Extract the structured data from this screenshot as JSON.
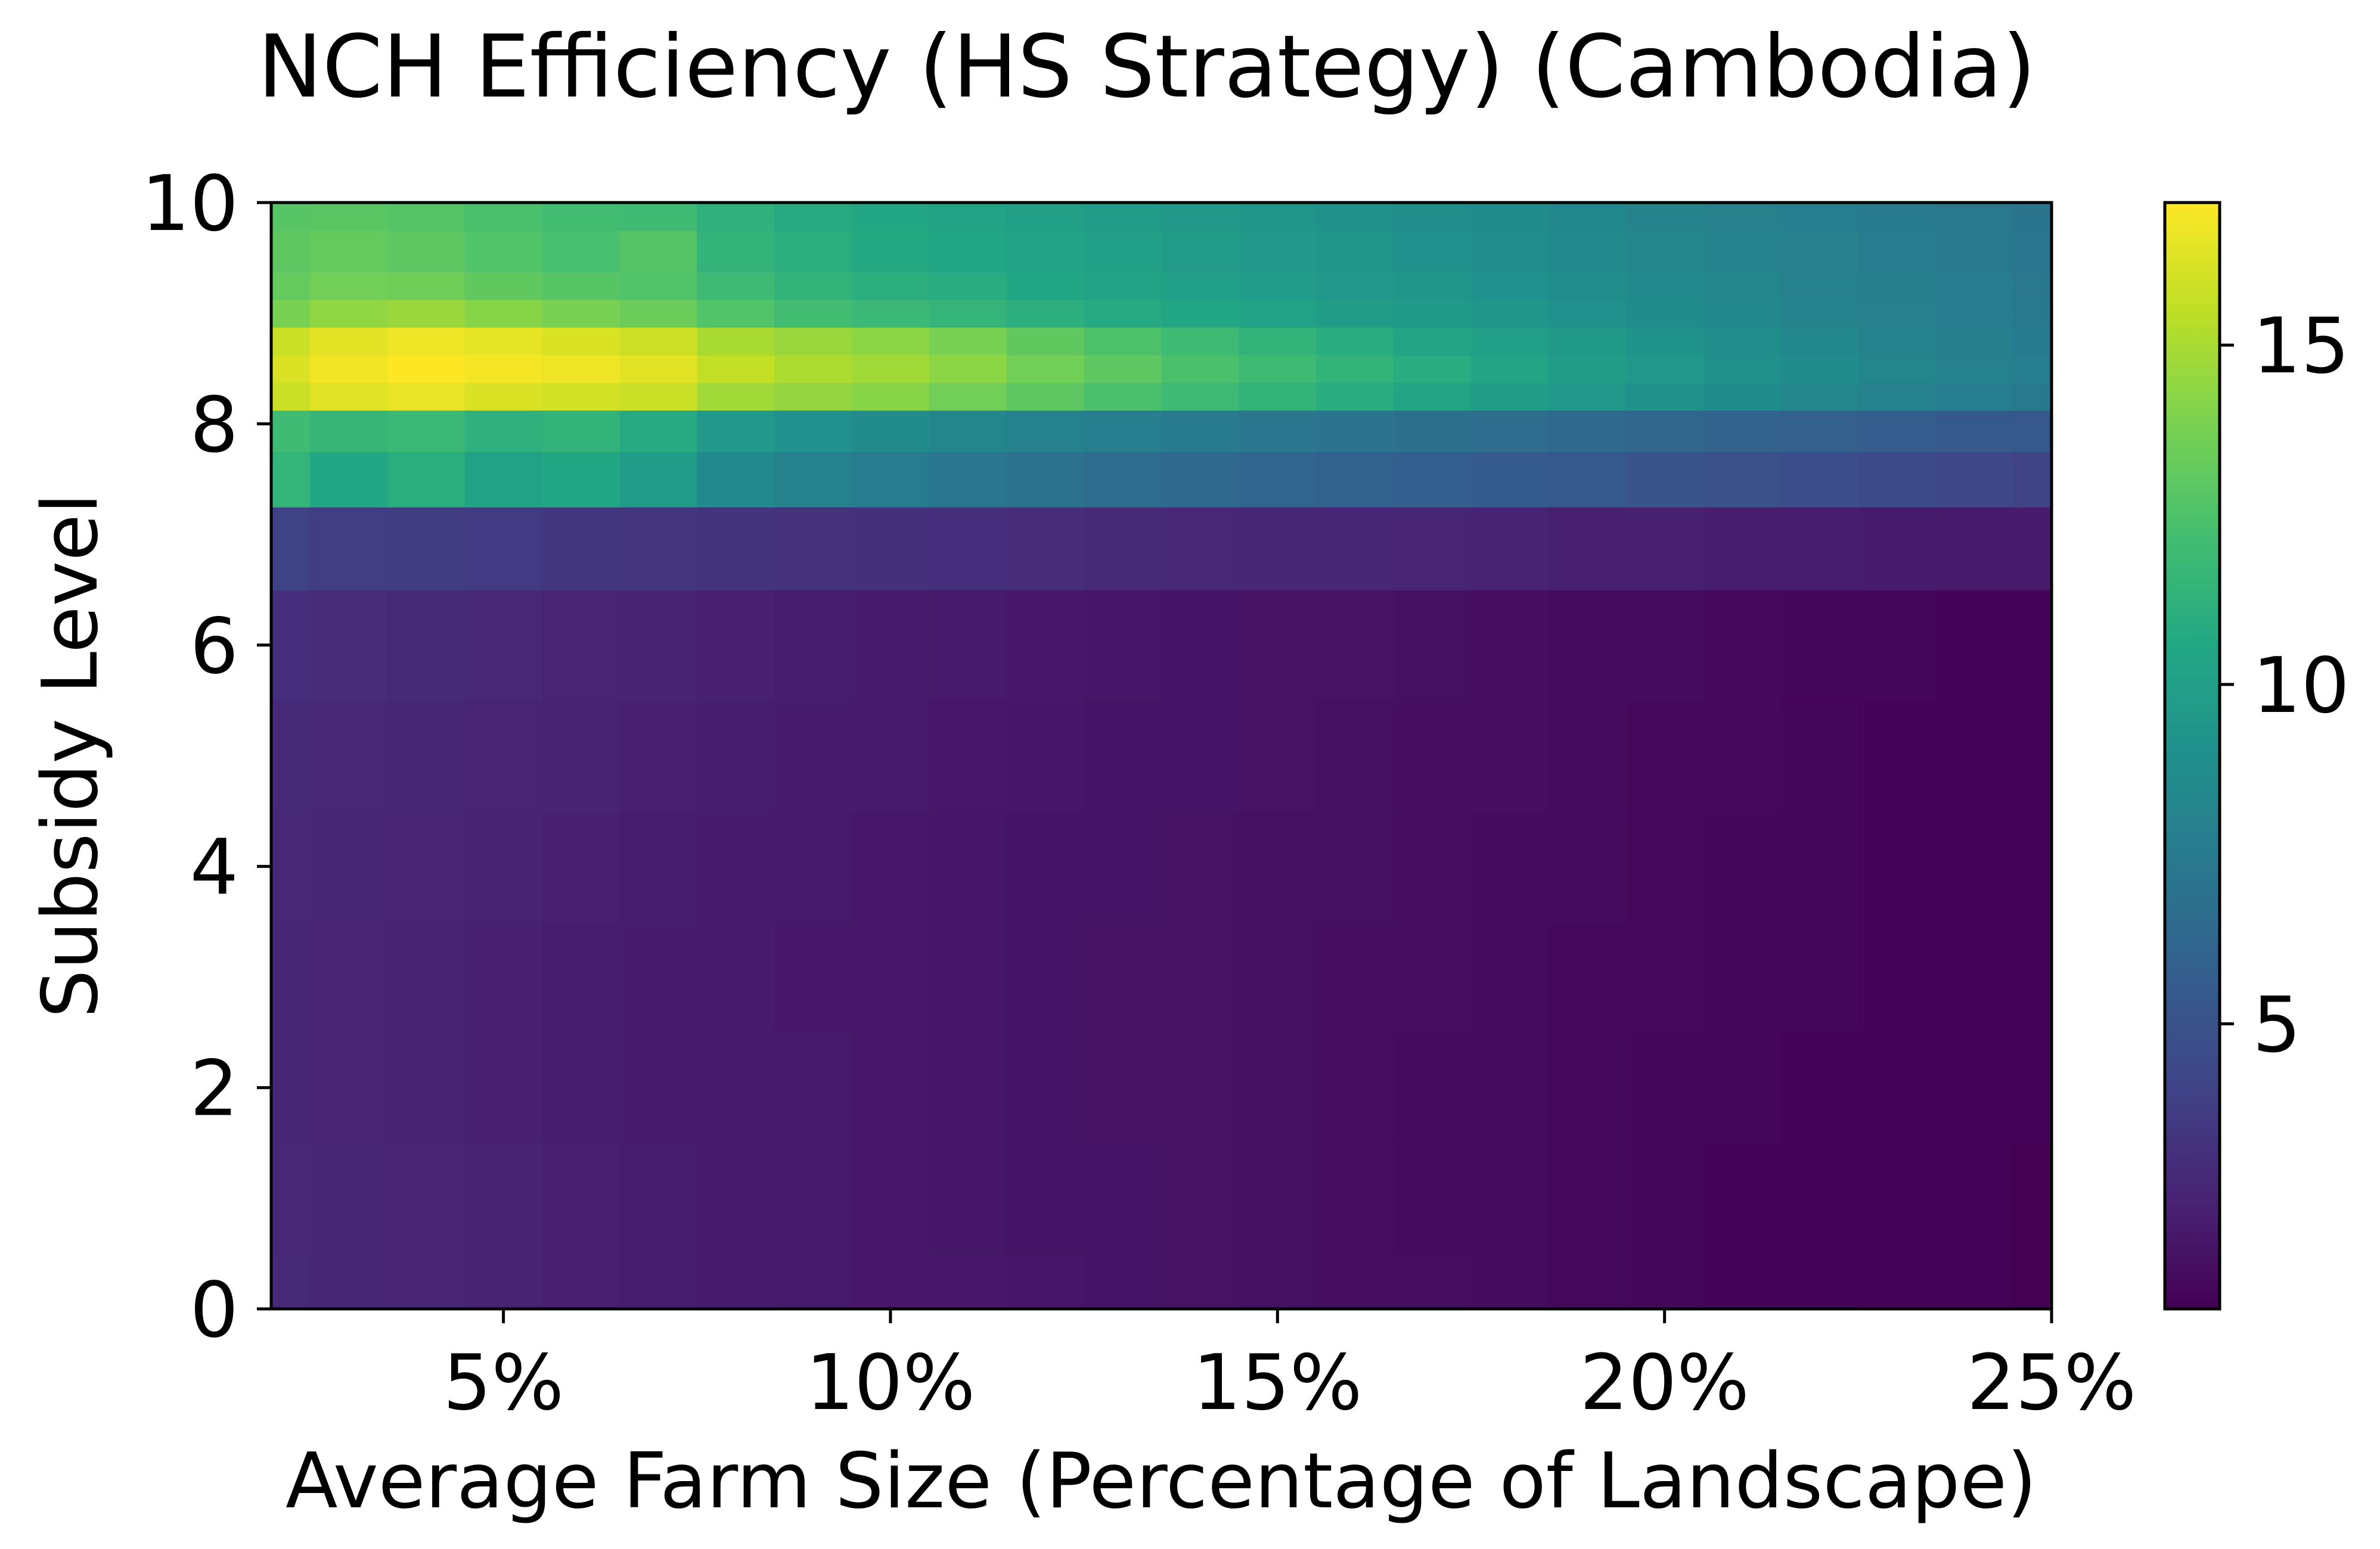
{
  "chart_data": {
    "type": "heatmap",
    "title": "NCH Efficiency (HS Strategy) (Cambodia)",
    "xlabel": "Average Farm Size (Percentage of Landscape)",
    "ylabel": "Subsidy Level",
    "xlim": [
      2,
      25
    ],
    "ylim": [
      0,
      10
    ],
    "x_ticks": [
      {
        "value": 5,
        "label": "5%"
      },
      {
        "value": 10,
        "label": "10%"
      },
      {
        "value": 15,
        "label": "15%"
      },
      {
        "value": 20,
        "label": "20%"
      },
      {
        "value": 25,
        "label": "25%"
      }
    ],
    "y_ticks": [
      {
        "value": 0,
        "label": "0"
      },
      {
        "value": 2,
        "label": "2"
      },
      {
        "value": 4,
        "label": "4"
      },
      {
        "value": 6,
        "label": "6"
      },
      {
        "value": 8,
        "label": "8"
      },
      {
        "value": 10,
        "label": "10"
      }
    ],
    "colormap": "viridis",
    "colorbar": {
      "range": [
        0.8,
        17.1
      ],
      "ticks": [
        {
          "value": 5,
          "label": "5"
        },
        {
          "value": 10,
          "label": "10"
        },
        {
          "value": 15,
          "label": "15"
        }
      ]
    },
    "grid": false,
    "x": [
      2,
      3,
      4,
      5,
      6,
      7,
      8,
      9,
      10,
      11,
      12,
      13,
      14,
      15,
      16,
      17,
      18,
      19,
      20,
      21,
      22,
      23,
      24,
      25
    ],
    "y": [
      0,
      1,
      2,
      3,
      4,
      5,
      6,
      7,
      7.5,
      8,
      8.25,
      8.5,
      8.75,
      9,
      9.25,
      9.5,
      10
    ],
    "z": [
      [
        2.8,
        2.6,
        2.5,
        2.4,
        2.3,
        2.2,
        2.1,
        2.0,
        1.9,
        1.9,
        1.8,
        1.7,
        1.6,
        1.5,
        1.4,
        1.4,
        1.3,
        1.2,
        1.1,
        1.0,
        1.0,
        0.9,
        0.9,
        0.8
      ],
      [
        2.7,
        2.6,
        2.5,
        2.4,
        2.3,
        2.2,
        2.1,
        2.0,
        1.9,
        1.8,
        1.7,
        1.7,
        1.6,
        1.5,
        1.4,
        1.3,
        1.3,
        1.2,
        1.1,
        1.0,
        1.0,
        0.9,
        0.9,
        0.8
      ],
      [
        2.6,
        2.5,
        2.4,
        2.3,
        2.2,
        2.1,
        2.0,
        2.0,
        1.9,
        1.8,
        1.7,
        1.6,
        1.6,
        1.5,
        1.4,
        1.3,
        1.3,
        1.2,
        1.1,
        1.1,
        1.0,
        1.0,
        0.9,
        0.9
      ],
      [
        2.6,
        2.5,
        2.4,
        2.3,
        2.2,
        2.1,
        2.0,
        1.9,
        1.9,
        1.8,
        1.7,
        1.6,
        1.6,
        1.5,
        1.4,
        1.4,
        1.3,
        1.2,
        1.2,
        1.1,
        1.1,
        1.0,
        1.0,
        0.9
      ],
      [
        2.7,
        2.6,
        2.5,
        2.4,
        2.3,
        2.2,
        2.1,
        2.0,
        1.9,
        1.8,
        1.7,
        1.7,
        1.6,
        1.5,
        1.5,
        1.4,
        1.3,
        1.3,
        1.2,
        1.1,
        1.1,
        1.0,
        1.0,
        0.9
      ],
      [
        2.8,
        2.7,
        2.6,
        2.5,
        2.4,
        2.3,
        2.2,
        2.1,
        2.0,
        1.9,
        1.8,
        1.7,
        1.7,
        1.6,
        1.5,
        1.4,
        1.4,
        1.3,
        1.2,
        1.2,
        1.1,
        1.0,
        1.0,
        0.9
      ],
      [
        3.0,
        2.9,
        2.8,
        2.7,
        2.5,
        2.4,
        2.3,
        2.2,
        2.1,
        2.0,
        1.9,
        1.8,
        1.7,
        1.6,
        1.6,
        1.5,
        1.4,
        1.3,
        1.3,
        1.2,
        1.1,
        1.1,
        1.0,
        1.0
      ],
      [
        4.0,
        3.8,
        3.7,
        3.6,
        3.5,
        3.4,
        3.3,
        3.2,
        3.1,
        3.0,
        2.9,
        2.8,
        2.7,
        2.6,
        2.6,
        2.5,
        2.4,
        2.3,
        2.3,
        2.2,
        2.2,
        2.1,
        2.0,
        2.0
      ],
      [
        11.5,
        10.5,
        11.0,
        10.2,
        10.6,
        9.8,
        8.5,
        8.0,
        7.6,
        7.2,
        6.9,
        6.6,
        6.4,
        6.1,
        5.9,
        5.7,
        5.5,
        5.3,
        5.1,
        4.9,
        4.7,
        4.5,
        4.3,
        4.1
      ],
      [
        12.0,
        11.6,
        11.8,
        11.2,
        11.4,
        10.8,
        9.5,
        9.0,
        8.6,
        8.3,
        8.0,
        7.7,
        7.5,
        7.2,
        7.0,
        6.8,
        6.6,
        6.4,
        6.2,
        6.0,
        5.8,
        5.6,
        5.4,
        5.3
      ],
      [
        15.8,
        16.3,
        16.6,
        16.2,
        16.0,
        15.8,
        14.8,
        14.5,
        14.2,
        13.6,
        13.0,
        12.4,
        11.9,
        11.4,
        10.9,
        10.4,
        9.9,
        9.5,
        9.1,
        8.7,
        8.3,
        8.0,
        7.7,
        7.4
      ],
      [
        16.2,
        16.8,
        17.1,
        16.9,
        16.7,
        16.4,
        15.6,
        15.1,
        14.8,
        14.3,
        13.6,
        13.0,
        12.4,
        11.9,
        11.4,
        10.9,
        10.4,
        9.9,
        9.5,
        9.1,
        8.7,
        8.3,
        8.0,
        7.7
      ],
      [
        15.8,
        16.4,
        16.7,
        16.5,
        16.2,
        15.9,
        15.0,
        14.6,
        14.3,
        13.8,
        13.1,
        12.5,
        11.9,
        11.4,
        10.9,
        10.4,
        10.0,
        9.6,
        9.2,
        8.8,
        8.4,
        8.1,
        7.8,
        7.5
      ],
      [
        13.8,
        14.4,
        14.6,
        14.2,
        13.8,
        13.4,
        12.6,
        12.1,
        11.8,
        11.5,
        11.1,
        10.8,
        10.5,
        10.2,
        9.9,
        9.6,
        9.3,
        9.0,
        8.7,
        8.4,
        8.1,
        7.9,
        7.6,
        7.4
      ],
      [
        13.2,
        13.6,
        13.5,
        13.1,
        12.8,
        12.6,
        11.9,
        11.4,
        11.1,
        10.9,
        10.6,
        10.3,
        10.0,
        9.8,
        9.5,
        9.3,
        9.0,
        8.8,
        8.5,
        8.3,
        8.0,
        7.8,
        7.6,
        7.3
      ],
      [
        13.0,
        13.2,
        13.0,
        12.6,
        12.3,
        12.7,
        11.4,
        11.0,
        10.7,
        10.5,
        10.2,
        10.0,
        9.7,
        9.5,
        9.3,
        9.0,
        8.8,
        8.5,
        8.3,
        8.1,
        7.9,
        7.6,
        7.4,
        7.2
      ],
      [
        12.8,
        12.9,
        12.7,
        12.4,
        12.1,
        12.0,
        11.2,
        10.8,
        10.5,
        10.3,
        10.0,
        9.8,
        9.5,
        9.3,
        9.1,
        8.8,
        8.6,
        8.4,
        8.1,
        7.9,
        7.7,
        7.5,
        7.3,
        7.1
      ]
    ]
  }
}
